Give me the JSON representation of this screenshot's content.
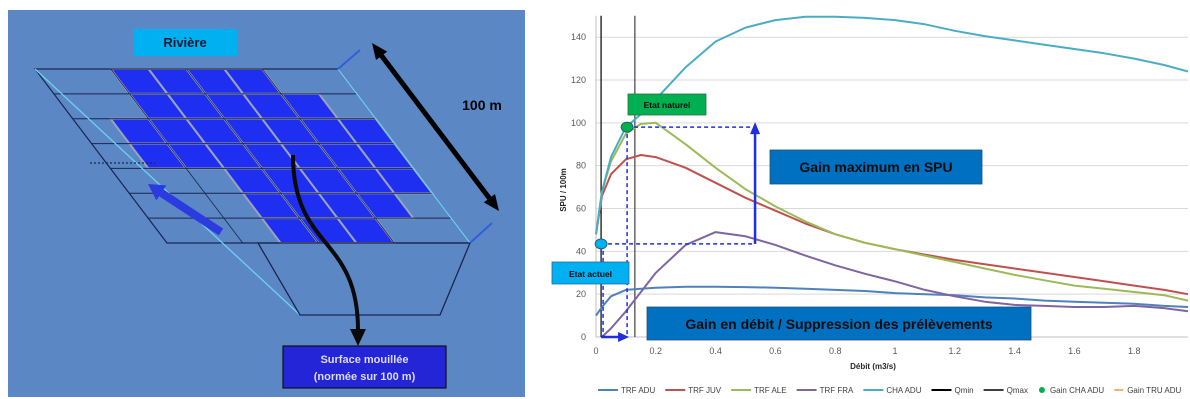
{
  "diagram": {
    "river_label": "Rivière",
    "length_label": "100 m",
    "wetted_surface_label": {
      "line1": "Surface mouillée",
      "line2": "(normée sur 100 m)"
    },
    "background_color": "#5b88c4",
    "tile_color": "#1f2ff2",
    "river_label_color": "#00b0f0",
    "wetted_box_color": "#2525d8"
  },
  "chart_data": {
    "type": "line",
    "title": "",
    "xlabel": "Débit (m3/s)",
    "ylabel": "SPU / 100m",
    "xlim": [
      0,
      1.98
    ],
    "ylim": [
      0,
      150
    ],
    "xticks": [
      0,
      0.2,
      0.4,
      0.6,
      0.8,
      1,
      1.2,
      1.4,
      1.6,
      1.8
    ],
    "yticks": [
      0,
      20,
      40,
      60,
      80,
      100,
      120,
      140
    ],
    "grid": "horizontal",
    "legend": "bottom",
    "x": [
      0,
      0.02,
      0.05,
      0.1,
      0.15,
      0.2,
      0.3,
      0.4,
      0.5,
      0.6,
      0.7,
      0.8,
      0.9,
      1.0,
      1.1,
      1.2,
      1.3,
      1.4,
      1.5,
      1.6,
      1.7,
      1.8,
      1.9,
      1.98
    ],
    "series": [
      {
        "name": "TRF ADU",
        "color": "#4f81bd",
        "values": [
          10,
          14,
          19,
          22,
          22.5,
          23,
          23.5,
          23.5,
          23.3,
          23,
          22.5,
          22,
          21.5,
          20.5,
          20,
          19.5,
          18.5,
          18,
          17,
          16.5,
          16,
          15.5,
          14.5,
          14
        ]
      },
      {
        "name": "TRF JUV",
        "color": "#c0504d",
        "values": [
          48,
          66,
          76,
          83,
          85,
          84,
          79,
          72,
          65,
          59,
          53,
          48,
          44,
          41,
          38.5,
          36,
          34,
          32,
          30,
          28,
          26,
          24,
          22,
          20
        ]
      },
      {
        "name": "TRF ALE",
        "color": "#9bbb59",
        "values": [
          48,
          68,
          82,
          95,
          99.5,
          100,
          90,
          79,
          69,
          61,
          54,
          48,
          44,
          41,
          38,
          35,
          32,
          29,
          26.5,
          24,
          22.5,
          21,
          19.5,
          17
        ]
      },
      {
        "name": "TRF FRA",
        "color": "#8064a2",
        "values": [
          null,
          0,
          4,
          12,
          21,
          30,
          43,
          49,
          47,
          43,
          38,
          33.5,
          29.5,
          26,
          22,
          19,
          16.5,
          15,
          14.5,
          14,
          14,
          14.5,
          13.5,
          12
        ]
      },
      {
        "name": "CHA ADU",
        "color": "#4bacc6",
        "values": [
          48,
          68,
          84,
          98,
          104,
          111,
          126,
          138,
          144.5,
          148,
          149.5,
          149.5,
          149,
          148,
          146,
          143,
          140.5,
          138.5,
          136.5,
          134.5,
          132.5,
          130,
          127,
          124
        ]
      }
    ],
    "vlines": [
      {
        "name": "Qmin",
        "x": 0.017,
        "color": "#000000"
      },
      {
        "name": "Qmax",
        "x": 0.13,
        "color": "#404040"
      }
    ],
    "markers": [
      {
        "name": "Gain CHA ADU",
        "kind": "dot",
        "color": "#00b050"
      },
      {
        "name": "Gain TRU ADU",
        "kind": "dash",
        "color": "#f79646"
      }
    ],
    "annotations": [
      {
        "label": "Etat naturel",
        "x": 0.104,
        "y": 98,
        "color": "#00b050"
      },
      {
        "label": "Etat actuel",
        "x": 0.017,
        "y": 43.5,
        "color": "#00b0f0"
      }
    ],
    "guide_color": "#1f2ee0",
    "callouts": {
      "spu_gain": "Gain maximum en SPU",
      "flow_gain": "Gain en débit / Suppression des prélèvements",
      "color": "#0070c0"
    }
  }
}
